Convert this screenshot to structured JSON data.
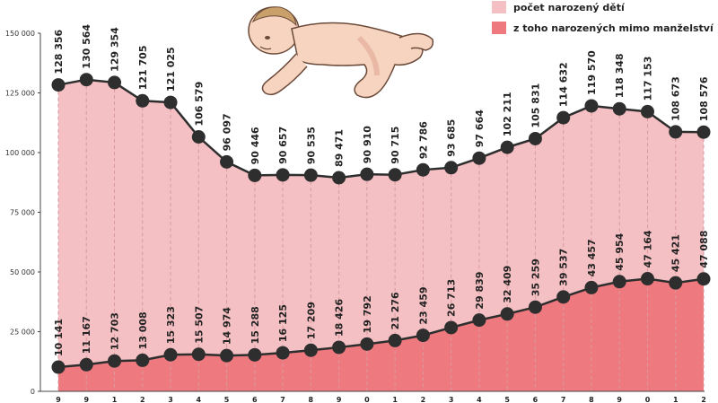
{
  "chart_data": {
    "type": "area",
    "title": "",
    "xlabel": "",
    "ylabel": "",
    "ylim": [
      0,
      150000
    ],
    "yticks": [
      "0",
      "25 000",
      "50 000",
      "75 000",
      "100 000",
      "125 000",
      "150 000"
    ],
    "ytick_values": [
      0,
      25000,
      50000,
      75000,
      100000,
      125000,
      150000
    ],
    "categories": [
      "9",
      "9",
      "1",
      "2",
      "3",
      "4",
      "5",
      "6",
      "7",
      "8",
      "9",
      "0",
      "1",
      "2",
      "3",
      "4",
      "5",
      "6",
      "7",
      "8",
      "9",
      "0",
      "1",
      "2"
    ],
    "grid": false,
    "legend_position": "top-right",
    "series": [
      {
        "name": "počet narozený dětí",
        "color": "#f4c0c3",
        "values": [
          128356,
          130564,
          129354,
          121705,
          121025,
          106579,
          96097,
          90446,
          90657,
          90535,
          89471,
          90910,
          90715,
          92786,
          93685,
          97664,
          102211,
          105831,
          114632,
          119570,
          118348,
          117153,
          108673,
          108576
        ],
        "labels": [
          "128 356",
          "130 564",
          "129 354",
          "121 705",
          "121 025",
          "106 579",
          "96 097",
          "90 446",
          "90 657",
          "90 535",
          "89 471",
          "90 910",
          "90 715",
          "92 786",
          "93 685",
          "97 664",
          "102 211",
          "105 831",
          "114 632",
          "119 570",
          "118 348",
          "117 153",
          "108 673",
          "108 576"
        ]
      },
      {
        "name": "z toho narozených  mimo manželství",
        "color": "#ee7a7f",
        "values": [
          10141,
          11167,
          12703,
          13008,
          15323,
          15507,
          14974,
          15288,
          16125,
          17209,
          18426,
          19792,
          21276,
          23459,
          26713,
          29839,
          32409,
          35259,
          39537,
          43457,
          45954,
          47164,
          45421,
          47088
        ],
        "labels": [
          "10 141",
          "11 167",
          "12 703",
          "13 008",
          "15 323",
          "15 507",
          "14 974",
          "15 288",
          "16 125",
          "17 209",
          "18 426",
          "19 792",
          "21 276",
          "23 459",
          "26 713",
          "29 839",
          "32 409",
          "35 259",
          "39 537",
          "43 457",
          "45 954",
          "47 164",
          "45 421",
          "47 088"
        ]
      }
    ]
  },
  "legend": {
    "items": [
      {
        "label": "počet narozený dětí",
        "color": "#f4c0c3"
      },
      {
        "label": "z toho narozených  mimo manželství",
        "color": "#ee7a7f"
      }
    ]
  },
  "illustration": {
    "icon": "crawling-baby-icon"
  }
}
